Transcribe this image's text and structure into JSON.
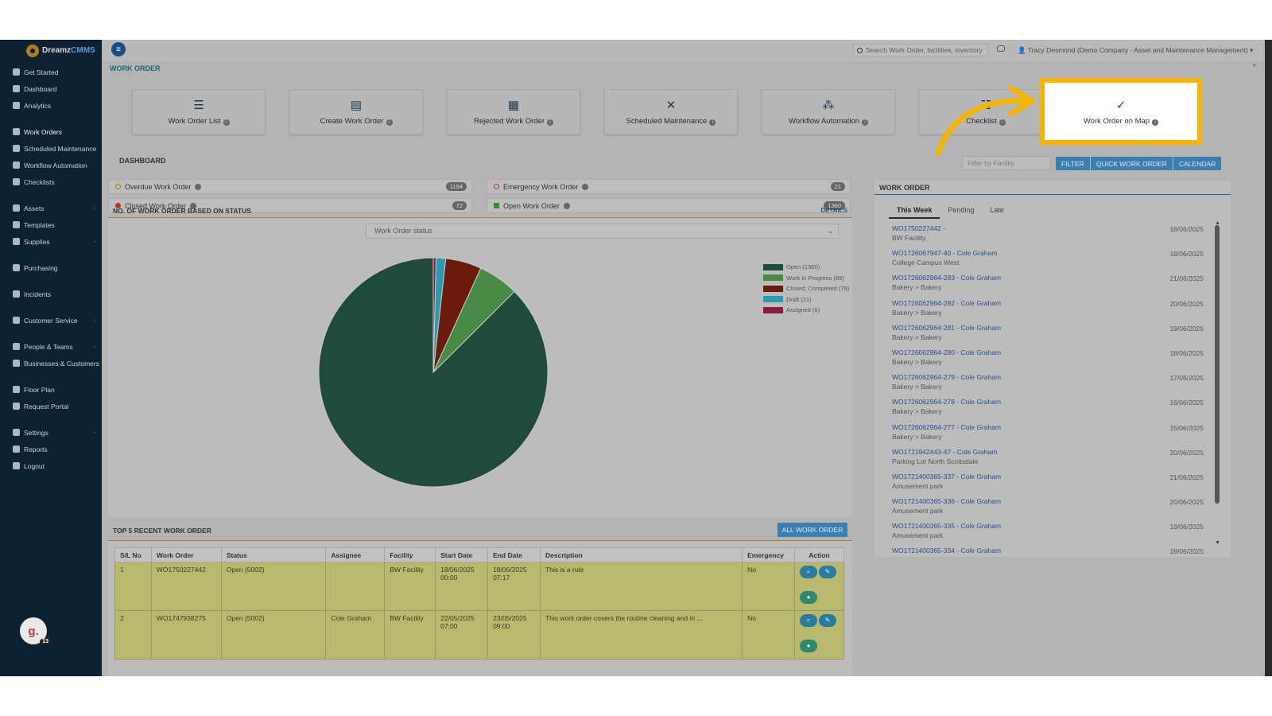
{
  "brand": {
    "name_part1": "Dreamz",
    "name_part2": "CMMS"
  },
  "sidebar": {
    "items": [
      {
        "label": "Get Started",
        "icon": "rocket-icon"
      },
      {
        "label": "Dashboard",
        "icon": "dashboard-icon"
      },
      {
        "label": "Analytics",
        "icon": "analytics-icon"
      },
      {
        "label": "Work Orders",
        "icon": "wrench-icon"
      },
      {
        "label": "Scheduled Maintenance",
        "icon": "wrench-icon"
      },
      {
        "label": "Workflow Automation",
        "icon": "workflow-icon"
      },
      {
        "label": "Checklists",
        "icon": "checkbox-icon"
      },
      {
        "label": "Assets",
        "icon": "assets-icon"
      },
      {
        "label": "Templates",
        "icon": "shuffle-icon"
      },
      {
        "label": "Supplies",
        "icon": "supplies-icon"
      },
      {
        "label": "Purchasing",
        "icon": "cart-icon"
      },
      {
        "label": "Incidents",
        "icon": "incident-icon"
      },
      {
        "label": "Customer Service",
        "icon": "document-icon"
      },
      {
        "label": "People & Teams",
        "icon": "people-icon"
      },
      {
        "label": "Businesses & Customers",
        "icon": "business-icon"
      },
      {
        "label": "Floor Plan",
        "icon": "print-icon"
      },
      {
        "label": "Request Portal",
        "icon": "chat-icon"
      },
      {
        "label": "Settings",
        "icon": "gear-icon"
      },
      {
        "label": "Reports",
        "icon": "report-icon"
      },
      {
        "label": "Logout",
        "icon": "user-icon"
      }
    ],
    "avatar_letter": "g.",
    "avatar_count": "13"
  },
  "topbar": {
    "search_placeholder": "Search Work Order, facilities, inventory",
    "user": "Tracy Desmond (Demo Company - Asset and Maintenance Management)"
  },
  "section": {
    "title": "WORK ORDER"
  },
  "tiles": [
    {
      "label": "Work Order List",
      "glyph": "☰"
    },
    {
      "label": "Create Work Order",
      "glyph": "▤"
    },
    {
      "label": "Rejected Work Order",
      "glyph": "▦"
    },
    {
      "label": "Scheduled Maintenance",
      "glyph": "✕"
    },
    {
      "label": "Workflow Automation",
      "glyph": "⁂"
    },
    {
      "label": "Checklist",
      "glyph": "☷"
    },
    {
      "label": "Work Order on Map",
      "glyph": "✓"
    }
  ],
  "dashboard": {
    "title": "DASHBOARD",
    "filter_placeholder": "Filter by Facility",
    "filter_btn": "FILTER",
    "quick_btn": "QUICK WORK ORDER",
    "calendar_btn": "CALENDAR"
  },
  "stats": [
    {
      "label": "Overdue Work Order",
      "count": "1194"
    },
    {
      "label": "Emergency Work Order",
      "count": "21"
    },
    {
      "label": "Closed Work Order",
      "count": "72"
    },
    {
      "label": "Open Work Order",
      "count": "1360"
    }
  ],
  "status_panel": {
    "title": "NO. OF WORK ORDER BASED ON STATUS",
    "details": "DETAILS",
    "select_value": "Work Order status"
  },
  "chart_data": {
    "type": "pie",
    "labels": [
      "Open",
      "Work in Progress",
      "Closed, Completed",
      "Draft",
      "Assigned"
    ],
    "values": [
      1360,
      89,
      79,
      21,
      6
    ],
    "legend_labels": [
      "Open (1360)",
      "Work in Progress (89)",
      "Closed, Completed (79)",
      "Draft (21)",
      "Assigned (6)"
    ],
    "colors": [
      "#1f4a3c",
      "#4a8a47",
      "#6b1a0b",
      "#2a9bb0",
      "#8e1a43"
    ],
    "legend": "right"
  },
  "recent": {
    "title": "TOP 5 RECENT WORK ORDER",
    "all_btn": "ALL WORK ORDER",
    "headers": [
      "S/L No",
      "Work Order",
      "Status",
      "Assignee",
      "Facility",
      "Start Date",
      "End Date",
      "Description",
      "Emergency",
      "Action"
    ],
    "rows": [
      [
        "1",
        "WO1750227442",
        "Open (5002)",
        "",
        "BW Facility",
        "18/06/2025 00:00",
        "18/06/2025 07:17",
        "This is a rule",
        "No"
      ],
      [
        "2",
        "WO1747938275",
        "Open (5002)",
        "Cole Graham",
        "BW Facility",
        "22/05/2025 07:00",
        "23/05/2025 09:00",
        "This work order covers the routine cleaning and in ...",
        "No"
      ]
    ]
  },
  "wo_panel": {
    "title": "WORK ORDER",
    "tabs": [
      "This Week",
      "Pending",
      "Late"
    ],
    "items": [
      {
        "id": "WO1750227442 -",
        "loc": "BW Facility",
        "date": "18/06/2025"
      },
      {
        "id": "WO1726067947-40 - Cole Graham",
        "loc": "College Campus West",
        "date": "18/06/2025"
      },
      {
        "id": "WO1726062964-283 - Cole Graham",
        "loc": "Bakery > Bakery",
        "date": "21/06/2025"
      },
      {
        "id": "WO1726062964-282 - Cole Graham",
        "loc": "Bakery > Bakery",
        "date": "20/06/2025"
      },
      {
        "id": "WO1726062964-281 - Cole Graham",
        "loc": "Bakery > Bakery",
        "date": "19/06/2025"
      },
      {
        "id": "WO1726062964-280 - Cole Graham",
        "loc": "Bakery > Bakery",
        "date": "18/06/2025"
      },
      {
        "id": "WO1726062964-279 - Cole Graham",
        "loc": "Bakery > Bakery",
        "date": "17/06/2025"
      },
      {
        "id": "WO1726062964-278 - Cole Graham",
        "loc": "Bakery > Bakery",
        "date": "16/06/2025"
      },
      {
        "id": "WO1726062964-277 - Cole Graham",
        "loc": "Bakery > Bakery",
        "date": "15/06/2025"
      },
      {
        "id": "WO1721942443-47 - Cole Graham",
        "loc": "Parking Lot North Scottsdale",
        "date": "20/06/2025"
      },
      {
        "id": "WO1721400365-337 - Cole Graham",
        "loc": "Amusement park",
        "date": "21/06/2025"
      },
      {
        "id": "WO1721400365-336 - Cole Graham",
        "loc": "Amusement park",
        "date": "20/06/2025"
      },
      {
        "id": "WO1721400365-335 - Cole Graham",
        "loc": "Amusement park",
        "date": "19/06/2025"
      },
      {
        "id": "WO1721400365-334 - Cole Graham",
        "loc": "",
        "date": "18/06/2025"
      }
    ]
  }
}
